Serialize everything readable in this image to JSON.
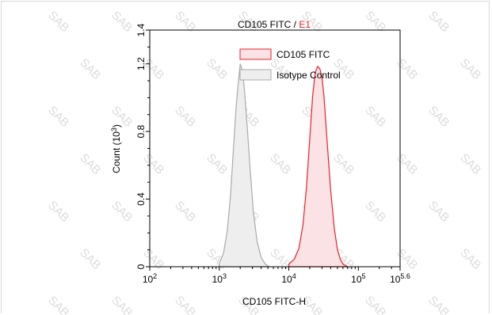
{
  "chart_data": {
    "type": "area",
    "title_prefix": "CD105 FITC / ",
    "title_gate": "E1",
    "xlabel": "CD105 FITC-H",
    "ylabel": "Count (10",
    "ylabel_exp": "3",
    "ylabel_suffix": ")",
    "x_scale": "log",
    "xlim": [
      100,
      398107
    ],
    "ylim": [
      0,
      1400
    ],
    "x_ticks": [
      {
        "base": "10",
        "exp": "2",
        "value": 100
      },
      {
        "base": "10",
        "exp": "3",
        "value": 1000
      },
      {
        "base": "10",
        "exp": "4",
        "value": 10000
      },
      {
        "base": "10",
        "exp": "5",
        "value": 100000
      },
      {
        "base": "10",
        "exp": "5.6",
        "value": 398107
      }
    ],
    "y_ticks": [
      {
        "label": "0",
        "value": 0
      },
      {
        "label": "0.4",
        "value": 400
      },
      {
        "label": "0.8",
        "value": 800
      },
      {
        "label": "1.2",
        "value": 1200
      },
      {
        "label": "1.4",
        "value": 1400
      }
    ],
    "legend_position": "top-right",
    "series": [
      {
        "name": "CD105 FITC",
        "color": "#e8202a",
        "fill": "#fbe3e5",
        "x": [
          10000,
          12000,
          14000,
          16000,
          18000,
          20000,
          22000,
          24000,
          26000,
          28000,
          30000,
          32000,
          35000,
          40000,
          45000,
          50000,
          55000,
          60000,
          70000
        ],
        "y": [
          15,
          45,
          110,
          250,
          480,
          760,
          1010,
          1150,
          1185,
          1170,
          1120,
          1010,
          780,
          450,
          230,
          100,
          45,
          15,
          0
        ]
      },
      {
        "name": "Isotype Control",
        "color": "#aaaaaa",
        "fill": "#eeeeee",
        "x": [
          1000,
          1150,
          1300,
          1450,
          1600,
          1750,
          1900,
          2000,
          2150,
          2300,
          2500,
          2800,
          3100,
          3500,
          4000,
          4600,
          5200
        ],
        "y": [
          20,
          80,
          210,
          420,
          700,
          950,
          1110,
          1200,
          1160,
          1050,
          850,
          560,
          320,
          150,
          55,
          15,
          0
        ]
      }
    ]
  },
  "watermark": "SAB"
}
